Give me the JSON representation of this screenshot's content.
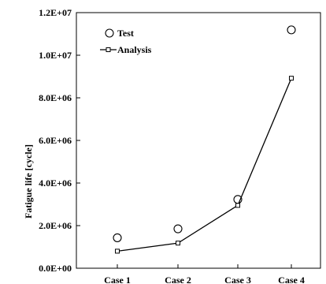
{
  "chart_data": {
    "type": "line",
    "title": "",
    "xlabel": "",
    "ylabel": "Fatigue life [cycle]",
    "categories": [
      "Case 1",
      "Case 2",
      "Case 3",
      "Case 4"
    ],
    "ylim": [
      0,
      12000000
    ],
    "yticks": [
      0,
      2000000,
      4000000,
      6000000,
      8000000,
      10000000,
      12000000
    ],
    "ytick_labels": [
      "0.0E+00",
      "2.0E+06",
      "4.0E+06",
      "6.0E+06",
      "8.0E+06",
      "1.0E+07",
      "1.2E+07"
    ],
    "grid": false,
    "legend_position": "top-left",
    "series": [
      {
        "name": "Test",
        "style": "markers",
        "marker": "open-circle",
        "values": [
          1430000,
          1850000,
          3230000,
          11190000
        ]
      },
      {
        "name": "Analysis",
        "style": "line-markers",
        "marker": "open-square",
        "values": [
          800000,
          1180000,
          2950000,
          8920000
        ]
      }
    ],
    "colors": {
      "axis": "#000000",
      "series": "#000000"
    }
  }
}
